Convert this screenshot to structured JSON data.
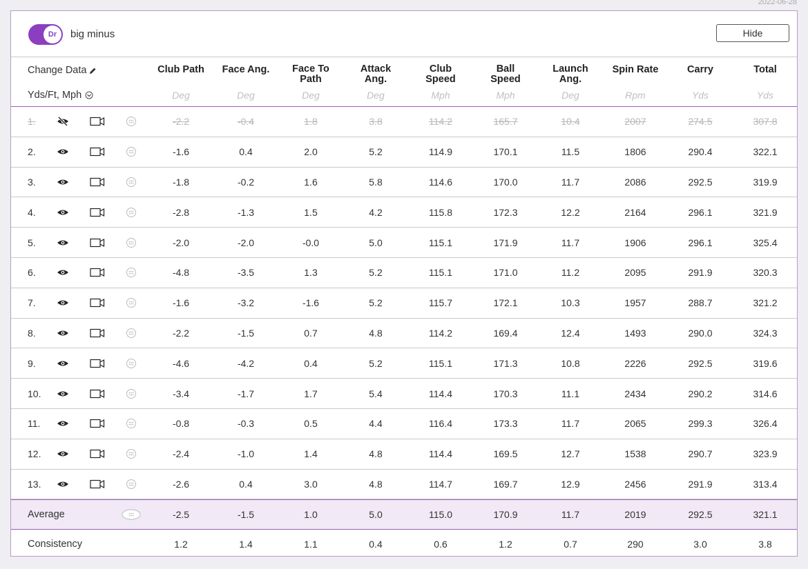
{
  "date": "2022-06-28",
  "club_toggle": {
    "club": "Dr",
    "label": "big minus",
    "on": true
  },
  "hide_label": "Hide",
  "change_data_label": "Change Data",
  "units_label": "Yds/Ft, Mph",
  "columns": [
    {
      "title_lines": [
        "Club Path"
      ],
      "unit": "Deg"
    },
    {
      "title_lines": [
        "Face Ang."
      ],
      "unit": "Deg"
    },
    {
      "title_lines": [
        "Face To",
        "Path"
      ],
      "unit": "Deg"
    },
    {
      "title_lines": [
        "Attack",
        "Ang."
      ],
      "unit": "Deg"
    },
    {
      "title_lines": [
        "Club",
        "Speed"
      ],
      "unit": "Mph"
    },
    {
      "title_lines": [
        "Ball",
        "Speed"
      ],
      "unit": "Mph"
    },
    {
      "title_lines": [
        "Launch",
        "Ang."
      ],
      "unit": "Deg"
    },
    {
      "title_lines": [
        "Spin Rate"
      ],
      "unit": "Rpm"
    },
    {
      "title_lines": [
        "Carry"
      ],
      "unit": "Yds"
    },
    {
      "title_lines": [
        "Total"
      ],
      "unit": "Yds"
    }
  ],
  "shots": [
    {
      "index": "1.",
      "hidden": true,
      "values": [
        "-2.2",
        "-0.4",
        "1.8",
        "3.8",
        "114.2",
        "165.7",
        "10.4",
        "2007",
        "274.5",
        "307.8"
      ]
    },
    {
      "index": "2.",
      "hidden": false,
      "values": [
        "-1.6",
        "0.4",
        "2.0",
        "5.2",
        "114.9",
        "170.1",
        "11.5",
        "1806",
        "290.4",
        "322.1"
      ]
    },
    {
      "index": "3.",
      "hidden": false,
      "values": [
        "-1.8",
        "-0.2",
        "1.6",
        "5.8",
        "114.6",
        "170.0",
        "11.7",
        "2086",
        "292.5",
        "319.9"
      ]
    },
    {
      "index": "4.",
      "hidden": false,
      "values": [
        "-2.8",
        "-1.3",
        "1.5",
        "4.2",
        "115.8",
        "172.3",
        "12.2",
        "2164",
        "296.1",
        "321.9"
      ]
    },
    {
      "index": "5.",
      "hidden": false,
      "values": [
        "-2.0",
        "-2.0",
        "-0.0",
        "5.0",
        "115.1",
        "171.9",
        "11.7",
        "1906",
        "296.1",
        "325.4"
      ]
    },
    {
      "index": "6.",
      "hidden": false,
      "values": [
        "-4.8",
        "-3.5",
        "1.3",
        "5.2",
        "115.1",
        "171.0",
        "11.2",
        "2095",
        "291.9",
        "320.3"
      ]
    },
    {
      "index": "7.",
      "hidden": false,
      "values": [
        "-1.6",
        "-3.2",
        "-1.6",
        "5.2",
        "115.7",
        "172.1",
        "10.3",
        "1957",
        "288.7",
        "321.2"
      ]
    },
    {
      "index": "8.",
      "hidden": false,
      "values": [
        "-2.2",
        "-1.5",
        "0.7",
        "4.8",
        "114.2",
        "169.4",
        "12.4",
        "1493",
        "290.0",
        "324.3"
      ]
    },
    {
      "index": "9.",
      "hidden": false,
      "values": [
        "-4.6",
        "-4.2",
        "0.4",
        "5.2",
        "115.1",
        "171.3",
        "10.8",
        "2226",
        "292.5",
        "319.6"
      ]
    },
    {
      "index": "10.",
      "hidden": false,
      "values": [
        "-3.4",
        "-1.7",
        "1.7",
        "5.4",
        "114.4",
        "170.3",
        "11.1",
        "2434",
        "290.2",
        "314.6"
      ]
    },
    {
      "index": "11.",
      "hidden": false,
      "values": [
        "-0.8",
        "-0.3",
        "0.5",
        "4.4",
        "116.4",
        "173.3",
        "11.7",
        "2065",
        "299.3",
        "326.4"
      ]
    },
    {
      "index": "12.",
      "hidden": false,
      "values": [
        "-2.4",
        "-1.0",
        "1.4",
        "4.8",
        "114.4",
        "169.5",
        "12.7",
        "1538",
        "290.7",
        "323.9"
      ]
    },
    {
      "index": "13.",
      "hidden": false,
      "values": [
        "-2.6",
        "0.4",
        "3.0",
        "4.8",
        "114.7",
        "169.7",
        "12.9",
        "2456",
        "291.9",
        "313.4"
      ]
    }
  ],
  "average": {
    "label": "Average",
    "values": [
      "-2.5",
      "-1.5",
      "1.0",
      "5.0",
      "115.0",
      "170.9",
      "11.7",
      "2019",
      "292.5",
      "321.1"
    ]
  },
  "consistency": {
    "label": "Consistency",
    "values": [
      "1.2",
      "1.4",
      "1.1",
      "0.4",
      "0.6",
      "1.2",
      "0.7",
      "290",
      "3.0",
      "3.8"
    ]
  },
  "colors": {
    "accent": "#8b3fc0",
    "average_bg": "#f1e9f6",
    "border": "#b89ac8"
  }
}
